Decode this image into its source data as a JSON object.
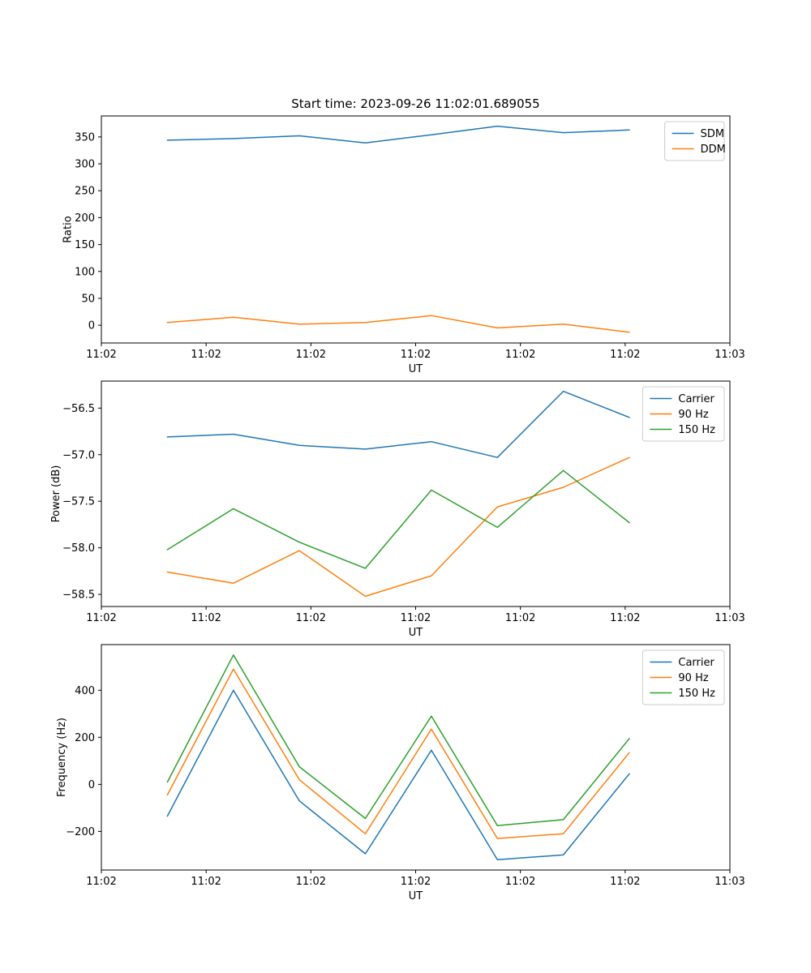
{
  "figure": {
    "background": "#ffffff"
  },
  "colors": {
    "blue": "#1f77b4",
    "orange": "#ff7f0e",
    "green": "#2ca02c",
    "legend_border": "#cccccc",
    "axes": "#000000"
  },
  "chart_data": [
    {
      "type": "line",
      "title": "Start time: 2023-09-26 11:02:01.689055",
      "xlabel": "UT",
      "ylabel": "Ratio",
      "xlim": [
        0,
        60
      ],
      "ylim": [
        -33,
        389
      ],
      "x": [
        6.3,
        12.6,
        18.9,
        25.2,
        31.5,
        37.8,
        44.1,
        50.4
      ],
      "xticks": [
        0,
        10,
        20,
        30,
        40,
        50,
        60
      ],
      "xtick_labels": [
        "11:02",
        "11:02",
        "11:02",
        "11:02",
        "11:02",
        "11:02",
        "11:03"
      ],
      "yticks": [
        0,
        50,
        100,
        150,
        200,
        250,
        300,
        350
      ],
      "ytick_labels": [
        "0",
        "50",
        "100",
        "150",
        "200",
        "250",
        "300",
        "350"
      ],
      "grid": false,
      "legend_position": "upper right",
      "series": [
        {
          "name": "SDM",
          "color": "#1f77b4",
          "values": [
            344,
            347,
            352,
            339,
            354,
            370,
            358,
            363
          ]
        },
        {
          "name": "DDM",
          "color": "#ff7f0e",
          "values": [
            5,
            15,
            2,
            5,
            18,
            -5,
            2,
            -13
          ]
        }
      ]
    },
    {
      "type": "line",
      "title": "",
      "xlabel": "UT",
      "ylabel": "Power (dB)",
      "xlim": [
        0,
        60
      ],
      "ylim": [
        -58.63,
        -56.21
      ],
      "x": [
        6.3,
        12.6,
        18.9,
        25.2,
        31.5,
        37.8,
        44.1,
        50.4
      ],
      "xticks": [
        0,
        10,
        20,
        30,
        40,
        50,
        60
      ],
      "xtick_labels": [
        "11:02",
        "11:02",
        "11:02",
        "11:02",
        "11:02",
        "11:02",
        "11:03"
      ],
      "yticks": [
        -58.5,
        -58.0,
        -57.5,
        -57.0,
        -56.5
      ],
      "ytick_labels": [
        "−58.5",
        "−58.0",
        "−57.5",
        "−57.0",
        "−56.5"
      ],
      "grid": false,
      "legend_position": "upper right",
      "series": [
        {
          "name": "Carrier",
          "color": "#1f77b4",
          "values": [
            -56.81,
            -56.78,
            -56.9,
            -56.94,
            -56.86,
            -57.03,
            -56.32,
            -56.6
          ]
        },
        {
          "name": "90 Hz",
          "color": "#ff7f0e",
          "values": [
            -58.26,
            -58.38,
            -58.03,
            -58.52,
            -58.3,
            -57.56,
            -57.35,
            -57.03
          ]
        },
        {
          "name": "150 Hz",
          "color": "#2ca02c",
          "values": [
            -58.02,
            -57.58,
            -57.94,
            -58.22,
            -57.38,
            -57.78,
            -57.17,
            -57.73
          ]
        }
      ]
    },
    {
      "type": "line",
      "title": "",
      "xlabel": "UT",
      "ylabel": "Frequency (Hz)",
      "xlim": [
        0,
        60
      ],
      "ylim": [
        -364,
        594
      ],
      "x": [
        6.3,
        12.6,
        18.9,
        25.2,
        31.5,
        37.8,
        44.1,
        50.4
      ],
      "xticks": [
        0,
        10,
        20,
        30,
        40,
        50,
        60
      ],
      "xtick_labels": [
        "11:02",
        "11:02",
        "11:02",
        "11:02",
        "11:02",
        "11:02",
        "11:03"
      ],
      "yticks": [
        -200,
        0,
        200,
        400
      ],
      "ytick_labels": [
        "−200",
        "0",
        "200",
        "400"
      ],
      "grid": false,
      "legend_position": "upper right",
      "series": [
        {
          "name": "Carrier",
          "color": "#1f77b4",
          "values": [
            -135,
            400,
            -70,
            -295,
            145,
            -320,
            -300,
            45
          ]
        },
        {
          "name": "90 Hz",
          "color": "#ff7f0e",
          "values": [
            -45,
            490,
            20,
            -210,
            235,
            -230,
            -210,
            135
          ]
        },
        {
          "name": "150 Hz",
          "color": "#2ca02c",
          "values": [
            10,
            550,
            75,
            -145,
            290,
            -175,
            -150,
            195
          ]
        }
      ]
    }
  ]
}
